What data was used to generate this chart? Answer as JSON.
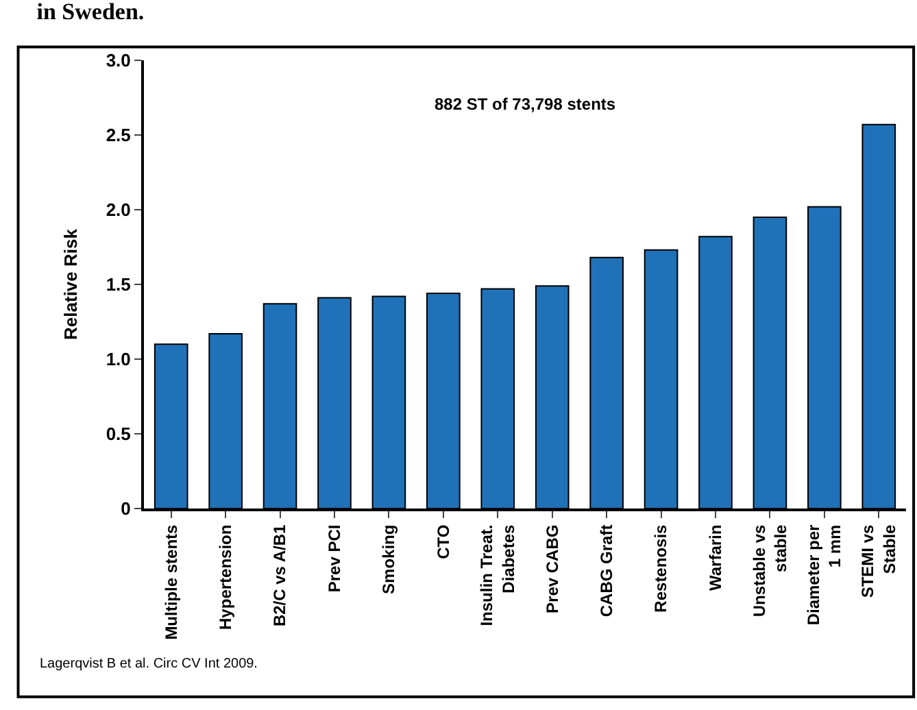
{
  "chart_data": {
    "type": "bar",
    "title": "in Sweden.",
    "ylabel": "Relative Risk",
    "categories": [
      "Multiple stents",
      "Hypertension",
      "B2/C vs A/B1",
      "Prev PCI",
      "Smoking",
      "CTO",
      "Insulin Treat.\nDiabetes",
      "Prev CABG",
      "CABG Graft",
      "Restenosis",
      "Warfarin",
      "Unstable vs\nstable",
      "Diameter per\n1 mm",
      "STEMI vs\nStable"
    ],
    "values": [
      1.1,
      1.17,
      1.37,
      1.41,
      1.42,
      1.44,
      1.47,
      1.49,
      1.68,
      1.73,
      1.82,
      1.95,
      2.02,
      2.57
    ],
    "color": "#1f72b8",
    "ylim": [
      0,
      3.0
    ],
    "yticks": [
      {
        "value": 0,
        "label": "0"
      },
      0.5,
      {
        "value": 1,
        "label": "1.0"
      },
      1.5,
      {
        "value": 2,
        "label": "2.0"
      },
      2.5,
      {
        "value": 3,
        "label": "3.0"
      }
    ],
    "annotations": [
      "882 ST of 73,798 stents",
      "Lagerqvist B et al. Circ CV Int 2009."
    ]
  }
}
